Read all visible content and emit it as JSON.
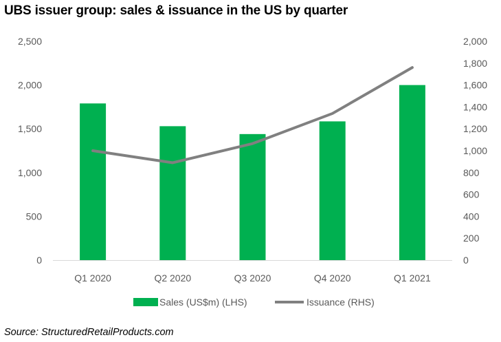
{
  "title": "UBS issuer group: sales & issuance in the US by quarter",
  "source": "Source: StructuredRetailProducts.com",
  "colors": {
    "bars": "#00B050",
    "line": "#808080",
    "text": "#595959",
    "axis": "#d9d9d9"
  },
  "chart_data": {
    "type": "bar",
    "categories": [
      "Q1 2020",
      "Q2 2020",
      "Q3 2020",
      "Q4 2020",
      "Q1 2021"
    ],
    "series": [
      {
        "name": "Sales (US$m) (LHS)",
        "type": "bar",
        "axis": "left",
        "values": [
          1790,
          1530,
          1440,
          1585,
          2000
        ]
      },
      {
        "name": "Issuance (RHS)",
        "type": "line",
        "axis": "right",
        "values": [
          1000,
          890,
          1065,
          1340,
          1760
        ]
      }
    ],
    "y_left": {
      "lim": [
        0,
        2500
      ],
      "ticks": [
        "0",
        "500",
        "1,000",
        "1,500",
        "2,000",
        "2,500"
      ]
    },
    "y_right": {
      "lim": [
        0,
        2000
      ],
      "ticks": [
        "0",
        "200",
        "400",
        "600",
        "800",
        "1,000",
        "1,200",
        "1,400",
        "1,600",
        "1,800",
        "2,000"
      ]
    },
    "grid": false,
    "legend": "bottom"
  }
}
